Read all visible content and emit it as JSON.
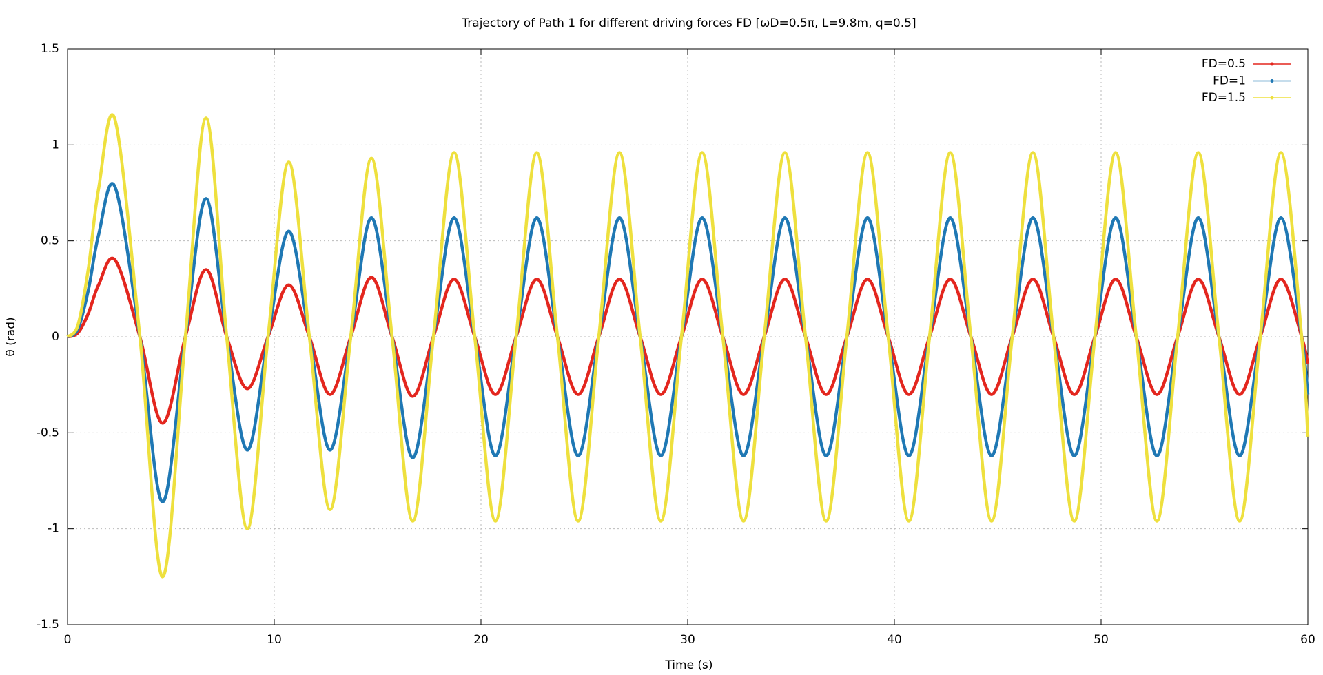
{
  "chart_data": {
    "type": "line",
    "title": "Trajectory of Path 1 for different driving forces FD [ωD=0.5π, L=9.8m, q=0.5]",
    "x_label": "Time (s)",
    "y_label": "θ (rad)",
    "x": [
      0,
      0.5,
      1,
      1.5,
      2.3,
      3.5,
      4.6,
      5.7,
      6.7,
      7.7,
      8.7,
      9.7,
      10.7,
      11.7,
      12.7,
      13.7,
      14.7,
      15.7,
      16.7,
      17.7,
      18.7,
      19.7,
      20.7,
      21.7,
      22.7,
      23.7,
      24.7,
      25.7,
      26.7,
      27.7,
      28.7,
      29.7,
      30.7,
      31.7,
      32.7,
      33.7,
      34.7,
      35.7,
      36.7,
      37.7,
      38.7,
      39.7,
      40.7,
      41.7,
      42.7,
      43.7,
      44.7,
      45.7,
      46.7,
      47.7,
      48.7,
      49.7,
      50.7,
      51.7,
      52.7,
      53.7,
      54.7,
      55.7,
      56.7,
      57.7,
      58.7,
      59.7,
      60
    ],
    "series": [
      {
        "name": "FD=0.5",
        "color": "#e3261e",
        "values": [
          0,
          0.02,
          0.12,
          0.27,
          0.4,
          0,
          -0.45,
          0,
          0.35,
          0,
          -0.27,
          0,
          0.27,
          0,
          -0.3,
          0,
          0.31,
          0,
          -0.31,
          0,
          0.3,
          0,
          -0.3,
          0,
          0.3,
          0,
          -0.3,
          0,
          0.3,
          0,
          -0.3,
          0,
          0.3,
          0,
          -0.3,
          0,
          0.3,
          0,
          -0.3,
          0,
          0.3,
          0,
          -0.3,
          0,
          0.3,
          0,
          -0.3,
          0,
          0.3,
          0,
          -0.3,
          0,
          0.3,
          0,
          -0.3,
          0,
          0.3,
          0,
          -0.3,
          0,
          0.3,
          0,
          -0.14
        ]
      },
      {
        "name": "FD=1",
        "color": "#1f78b4",
        "values": [
          0,
          0.04,
          0.24,
          0.53,
          0.78,
          0,
          -0.86,
          0,
          0.72,
          0,
          -0.59,
          0,
          0.55,
          0,
          -0.59,
          0,
          0.62,
          0,
          -0.63,
          0,
          0.62,
          0,
          -0.62,
          0,
          0.62,
          0,
          -0.62,
          0,
          0.62,
          0,
          -0.62,
          0,
          0.62,
          0,
          -0.62,
          0,
          0.62,
          0,
          -0.62,
          0,
          0.62,
          0,
          -0.62,
          0,
          0.62,
          0,
          -0.62,
          0,
          0.62,
          0,
          -0.62,
          0,
          0.62,
          0,
          -0.62,
          0,
          0.62,
          0,
          -0.62,
          0,
          0.62,
          0,
          -0.3
        ]
      },
      {
        "name": "FD=1.5",
        "color": "#eee03e",
        "values": [
          0,
          0.06,
          0.35,
          0.77,
          1.13,
          0,
          -1.25,
          0,
          1.14,
          0,
          -1,
          0,
          0.91,
          0,
          -0.9,
          0,
          0.93,
          0,
          -0.96,
          0,
          0.96,
          0,
          -0.96,
          0,
          0.96,
          0,
          -0.96,
          0,
          0.96,
          0,
          -0.96,
          0,
          0.96,
          0,
          -0.96,
          0,
          0.96,
          0,
          -0.96,
          0,
          0.96,
          0,
          -0.96,
          0,
          0.96,
          0,
          -0.96,
          0,
          0.96,
          0,
          -0.96,
          0,
          0.96,
          0,
          -0.96,
          0,
          0.96,
          0,
          -0.96,
          0,
          0.96,
          0,
          -0.52
        ]
      }
    ],
    "xlim": [
      0,
      60
    ],
    "xticks": [
      0,
      10,
      20,
      30,
      40,
      50,
      60
    ],
    "ylim": [
      -1.5,
      1.5
    ],
    "yticks": [
      -1.5,
      -1,
      -0.5,
      0,
      0.5,
      1,
      1.5
    ],
    "grid": true,
    "legend": "top-right"
  }
}
